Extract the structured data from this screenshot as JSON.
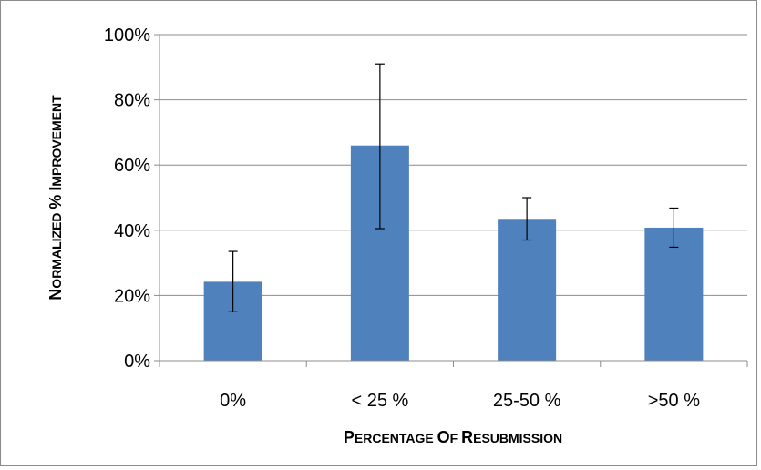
{
  "chart_data": {
    "type": "bar",
    "categories": [
      "0%",
      "< 25 %",
      "25-50 %",
      ">50 %"
    ],
    "values": [
      24.2,
      66.0,
      43.5,
      40.8
    ],
    "error_bars": {
      "upper": [
        33.5,
        91.0,
        50.0,
        46.8
      ],
      "lower": [
        15.0,
        40.5,
        37.0,
        34.8
      ]
    },
    "xlabel": "Percentage of resubmission",
    "ylabel": "Normalized % improvement",
    "ylim": [
      0,
      100
    ],
    "yticks": [
      0,
      20,
      40,
      60,
      80,
      100
    ],
    "ytick_labels": [
      "0%",
      "20%",
      "40%",
      "60%",
      "80%",
      "100%"
    ],
    "grid": true,
    "legend": "none",
    "bar_color": "#4f81bd",
    "grid_color": "#8c8c8c"
  }
}
